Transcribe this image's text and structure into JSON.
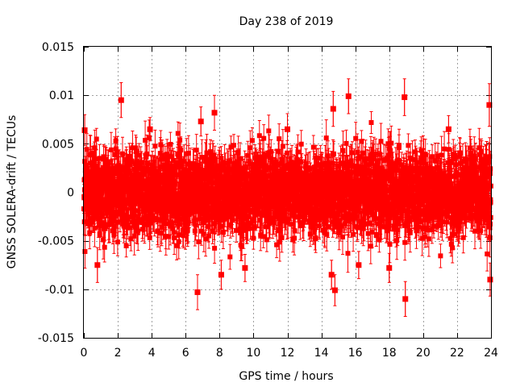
{
  "chart_data": {
    "type": "scatter",
    "title": "Day 238 of 2019",
    "xlabel": "GPS time / hours",
    "ylabel": "GNSS SOLERA-drift / TECUs",
    "xlim": [
      0,
      24
    ],
    "ylim": [
      -0.015,
      0.015
    ],
    "x_ticks": [
      "0",
      "2",
      "4",
      "6",
      "8",
      "10",
      "12",
      "14",
      "16",
      "18",
      "20",
      "22",
      "24"
    ],
    "y_ticks": [
      "-0.015",
      "-0.01",
      "-0.005",
      "0",
      "0.005",
      "0.01",
      "0.015"
    ],
    "grid": true,
    "legend": "none",
    "series": [
      {
        "name": "SOLERA drift",
        "color": "#ff0000",
        "marker": "square",
        "error_bars": true,
        "sample_interval_hours": 0.0083,
        "points_note": "dense noise about 0 (std ~0.0022, bars ~0.0015)",
        "outliers": [
          {
            "x": 0.05,
            "y": 0.0064,
            "err": 0.0016
          },
          {
            "x": 0.8,
            "y": -0.0075,
            "err": 0.0018
          },
          {
            "x": 2.2,
            "y": 0.0095,
            "err": 0.0018
          },
          {
            "x": 3.9,
            "y": 0.0065,
            "err": 0.0012
          },
          {
            "x": 6.7,
            "y": -0.0103,
            "err": 0.0018
          },
          {
            "x": 6.9,
            "y": 0.0073,
            "err": 0.0015
          },
          {
            "x": 7.7,
            "y": 0.0082,
            "err": 0.0018
          },
          {
            "x": 8.1,
            "y": -0.0085,
            "err": 0.0015
          },
          {
            "x": 9.5,
            "y": -0.0078,
            "err": 0.0014
          },
          {
            "x": 12.0,
            "y": 0.0065,
            "err": 0.0016
          },
          {
            "x": 14.6,
            "y": -0.0085,
            "err": 0.0015
          },
          {
            "x": 14.7,
            "y": 0.0086,
            "err": 0.0018
          },
          {
            "x": 14.8,
            "y": -0.0101,
            "err": 0.0016
          },
          {
            "x": 15.6,
            "y": 0.0099,
            "err": 0.0018
          },
          {
            "x": 16.2,
            "y": -0.0075,
            "err": 0.0014
          },
          {
            "x": 18.0,
            "y": -0.0078,
            "err": 0.0015
          },
          {
            "x": 18.9,
            "y": 0.0098,
            "err": 0.0019
          },
          {
            "x": 18.95,
            "y": -0.011,
            "err": 0.0018
          },
          {
            "x": 21.5,
            "y": 0.0065,
            "err": 0.0014
          },
          {
            "x": 23.9,
            "y": 0.009,
            "err": 0.0022
          },
          {
            "x": 23.95,
            "y": -0.009,
            "err": 0.0017
          }
        ]
      }
    ]
  }
}
